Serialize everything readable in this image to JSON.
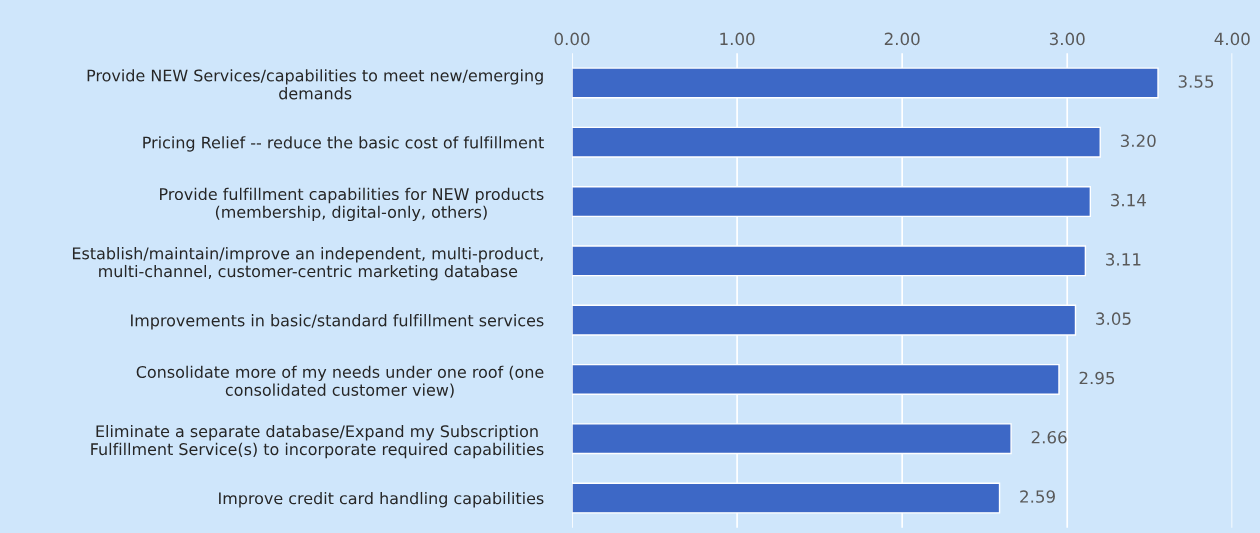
{
  "chart_data": {
    "type": "bar",
    "orientation": "horizontal",
    "categories": [
      "Provide NEW Services/capabilities to meet new/emerging\ndemands",
      "Pricing Relief -- reduce the basic cost of fulfillment",
      "Provide fulfillment capabilities for NEW products\n(membership, digital-only, others)",
      "Establish/maintain/improve an independent, multi-product,\nmulti-channel, customer-centric marketing database",
      "Improvements in basic/standard fulfillment services",
      "Consolidate more of my needs under one roof (one\nconsolidated customer view)",
      "Eliminate a separate database/Expand my Subscription\nFulfillment Service(s) to incorporate required capabilities",
      "Improve credit card handling capabilities"
    ],
    "values": [
      3.55,
      3.2,
      3.14,
      3.11,
      3.05,
      2.95,
      2.66,
      2.59
    ],
    "color": "#3d68c6",
    "xlim": [
      0,
      4
    ],
    "xticks": [
      {
        "value": 0,
        "label": "0.00"
      },
      {
        "value": 1,
        "label": "1.00"
      },
      {
        "value": 2,
        "label": "2.00"
      },
      {
        "value": 3,
        "label": "3.00"
      },
      {
        "value": 4,
        "label": "4.00"
      }
    ],
    "value_labels": [
      "3.55",
      "3.20",
      "3.14",
      "3.11",
      "3.05",
      "2.95",
      "2.66",
      "2.59"
    ],
    "grid": "x"
  }
}
